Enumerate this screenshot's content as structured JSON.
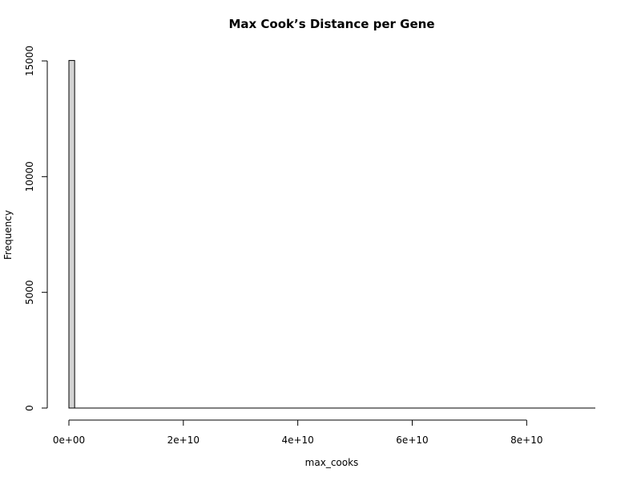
{
  "chart_data": {
    "type": "bar",
    "title": "Max Cook’s Distance per Gene",
    "xlabel": "max_cooks",
    "ylabel": "Frequency",
    "bin_width": 1000000000,
    "x_range": [
      0,
      92000000000
    ],
    "xlim": [
      0,
      92000000000
    ],
    "ylim": [
      0,
      15000
    ],
    "bins": [
      {
        "from": 0,
        "to": 1000000000,
        "count": 15020
      }
    ],
    "x_ticks": [
      {
        "value": 0,
        "label": "0e+00"
      },
      {
        "value": 20000000000,
        "label": "2e+10"
      },
      {
        "value": 40000000000,
        "label": "4e+10"
      },
      {
        "value": 60000000000,
        "label": "6e+10"
      },
      {
        "value": 80000000000,
        "label": "8e+10"
      }
    ],
    "y_ticks": [
      {
        "value": 0,
        "label": "0"
      },
      {
        "value": 5000,
        "label": "5000"
      },
      {
        "value": 10000,
        "label": "10000"
      },
      {
        "value": 15000,
        "label": "15000"
      }
    ],
    "bar_fill": "#d3d3d3",
    "bar_stroke": "#000000",
    "grid": false,
    "legend": "none"
  }
}
